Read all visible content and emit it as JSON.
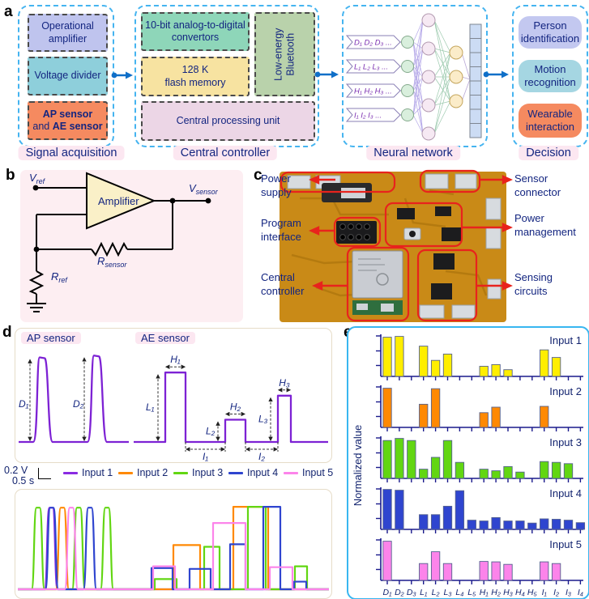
{
  "palette": {
    "navy": "#132580",
    "badge_pink": "#fce7f1",
    "arrow_blue": "#0f6fc8",
    "annotation_red": "#e8231d",
    "waveform_purple": "#7d22d4",
    "dashed_border_cyan": "#45b4f0",
    "panel_e_border": "#38b6f0",
    "panel_b_bg": "#fdeef2",
    "pcb_gold": "#c98a17"
  },
  "letters": {
    "a": "a",
    "b": "b",
    "c": "c",
    "d": "d",
    "e": "e"
  },
  "panel_a": {
    "section_labels": [
      "Signal acquisition",
      "Central controller",
      "Neural network",
      "Decision"
    ],
    "signal": {
      "op_amp": {
        "text": "Operational amplifier",
        "bg": "#bfc4ee"
      },
      "voltage": {
        "text": "Voltage divider",
        "bg": "#8ecfdb"
      },
      "sensors": {
        "bold1": "AP sensor",
        "mid": "and ",
        "bold2": "AE sensor",
        "bg": "#f58a60"
      }
    },
    "controller": {
      "adc": {
        "text": "10-bit analog-to-digital convertors",
        "bg": "#8ed6b9"
      },
      "flash": {
        "line1": "128 K",
        "line2": "flash memory",
        "bg": "#f7e3a1"
      },
      "bluetooth": {
        "text": "Low-energy Bluetooth",
        "bg": "#b9d2ab"
      },
      "cpu": {
        "text": "Central processing unit",
        "bg": "#ecd6e6"
      }
    },
    "nn": {
      "tags": [
        "D₁ D₂ D₃ ...",
        "L₁ L₂ L₃ ...",
        "H₁ H₂ H₃ ...",
        "I₁ I₂ I₃ ..."
      ]
    },
    "decision": {
      "person": {
        "text": "Person identification",
        "bg": "#c3c8f0"
      },
      "motion": {
        "text": "Motion recognition",
        "bg": "#a5d6e2"
      },
      "wearable": {
        "text": "Wearable interaction",
        "bg": "#f58a60"
      }
    }
  },
  "panel_b": {
    "amplifier": "Amplifier",
    "v_ref": {
      "sym": "V",
      "sub": "ref"
    },
    "v_sensor": {
      "sym": "V",
      "sub": "sensor"
    },
    "r_sensor": {
      "sym": "R",
      "sub": "sensor"
    },
    "r_ref": {
      "sym": "R",
      "sub": "ref"
    }
  },
  "panel_c": {
    "labels_left": [
      "Power supply",
      "Program interface",
      "Central controller"
    ],
    "labels_right": [
      "Sensor connector",
      "Power management",
      "Sensing circuits"
    ]
  },
  "panel_d": {
    "ap_badge": "AP sensor",
    "ae_badge": "AE sensor",
    "scale_voltage": "0.2 V",
    "scale_time": "0.5 s"
  },
  "chart_data": [
    {
      "id": "sensor-features",
      "type": "line",
      "color": "#7d22d4",
      "ap_peaks": [
        {
          "label": "D₁",
          "x": 33,
          "h": 0.95
        },
        {
          "label": "D₂",
          "x": 100,
          "h": 0.97
        }
      ],
      "ae_pulses": [
        {
          "h_label": "L₁",
          "w_label": "H₁",
          "x": 185,
          "w": 25,
          "h": 0.78
        },
        {
          "h_label": "L₂",
          "w_label": "H₂",
          "x": 259,
          "w": 25,
          "h": 0.25
        },
        {
          "h_label": "L₃",
          "w_label": "H₃",
          "x": 324,
          "w": 16,
          "h": 0.52
        }
      ],
      "intervals": [
        "I₁",
        "I₂"
      ]
    },
    {
      "id": "combined-waveforms",
      "type": "line",
      "series": [
        {
          "name": "Input 1",
          "color": "#8a2be2",
          "spikes": [
            44
          ],
          "pulses": []
        },
        {
          "name": "Input 2",
          "color": "#ff8903",
          "spikes": [
            58
          ],
          "pulses": [
            [
              195,
              33,
              0.52
            ],
            [
              269,
              43,
              0.97
            ]
          ]
        },
        {
          "name": "Input 3",
          "color": "#62d612",
          "spikes": [
            28,
            78,
            113
          ],
          "pulses": [
            [
              172,
              27,
              0.12
            ],
            [
              233,
              19,
              0.5
            ],
            [
              287,
              22,
              0.97
            ],
            [
              345,
              15,
              0.27
            ]
          ]
        },
        {
          "name": "Input 4",
          "color": "#2f45cf",
          "spikes": [
            45,
            92
          ],
          "pulses": [
            [
              168,
              26,
              0.25
            ],
            [
              215,
              26,
              0.24
            ],
            [
              265,
              19,
              0.53
            ],
            [
              306,
              21,
              0.97
            ],
            [
              344,
              15,
              0.09
            ]
          ]
        },
        {
          "name": "Input 5",
          "color": "#fc84ea",
          "spikes": [
            69
          ],
          "pulses": [
            [
              170,
              27,
              0.27
            ],
            [
              244,
              40,
              0.78
            ],
            [
              314,
              28,
              0.26
            ]
          ]
        }
      ]
    },
    {
      "id": "normalized-features",
      "type": "bar",
      "ylabel": "Normalized value",
      "categories": [
        "D₁",
        "D₂",
        "D₃",
        "L₁",
        "L₂",
        "L₃",
        "L₄",
        "L₅",
        "H₁",
        "H₂",
        "H₃",
        "H₄",
        "H₅",
        "I₁",
        "I₂",
        "I₃",
        "I₄"
      ],
      "ylim": [
        0,
        1
      ],
      "series": [
        {
          "name": "Input 1",
          "color": "#ffee00",
          "values": [
            0.93,
            0.95,
            0,
            0.72,
            0.38,
            0.53,
            0,
            0,
            0.24,
            0.28,
            0.16,
            0,
            0,
            0.63,
            0.45,
            0,
            0
          ]
        },
        {
          "name": "Input 2",
          "color": "#ff8903",
          "values": [
            0.93,
            0,
            0,
            0.55,
            0.92,
            0,
            0,
            0,
            0.35,
            0.48,
            0,
            0,
            0,
            0.5,
            0,
            0,
            0
          ]
        },
        {
          "name": "Input 3",
          "color": "#62d612",
          "values": [
            0.9,
            0.95,
            0.9,
            0.22,
            0.5,
            0.9,
            0.38,
            0,
            0.22,
            0.18,
            0.28,
            0.15,
            0,
            0.4,
            0.38,
            0.35,
            0
          ]
        },
        {
          "name": "Input 4",
          "color": "#2f45cf",
          "values": [
            0.95,
            0.93,
            0,
            0.35,
            0.35,
            0.55,
            0.92,
            0.22,
            0.2,
            0.28,
            0.2,
            0.2,
            0.15,
            0.25,
            0.24,
            0.22,
            0.16
          ]
        },
        {
          "name": "Input 5",
          "color": "#fc84ea",
          "values": [
            0.93,
            0,
            0,
            0.4,
            0.68,
            0.4,
            0,
            0,
            0.45,
            0.44,
            0.38,
            0,
            0,
            0.44,
            0.4,
            0,
            0
          ]
        }
      ]
    }
  ]
}
